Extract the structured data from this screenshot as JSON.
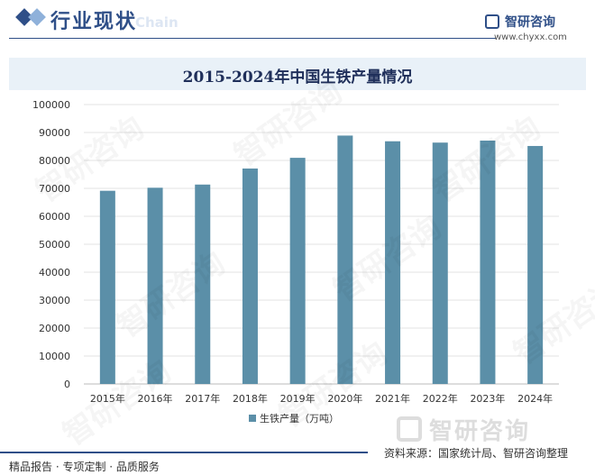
{
  "header": {
    "title": "行业现状",
    "ghost_text": "Chain"
  },
  "brand": {
    "name": "智研咨询",
    "url": "www.chyxx.com",
    "watermark": "智研咨询"
  },
  "footer": {
    "left": "精品报告 · 专项定制 · 品质服务",
    "source": "资料来源：国家统计局、智研咨询整理"
  },
  "colors": {
    "bar": "#5b8fa8",
    "title_band": "#e9f1f8",
    "brand_blue": "#2f4f88",
    "grid": "#e3e3e3"
  },
  "chart_data": {
    "type": "bar",
    "title": "2015-2024年中国生铁产量情况",
    "categories": [
      "2015年",
      "2016年",
      "2017年",
      "2018年",
      "2019年",
      "2020年",
      "2021年",
      "2022年",
      "2023年",
      "2024年"
    ],
    "series": [
      {
        "name": "生铁产量（万吨）",
        "values": [
          69141,
          70227,
          71362,
          77105,
          80937,
          88898,
          86857,
          86383,
          87101,
          85174
        ]
      }
    ],
    "ylim": [
      0,
      100000
    ],
    "yticks": [
      0,
      10000,
      20000,
      30000,
      40000,
      50000,
      60000,
      70000,
      80000,
      90000,
      100000
    ],
    "grid": true,
    "legend_position": "bottom"
  }
}
